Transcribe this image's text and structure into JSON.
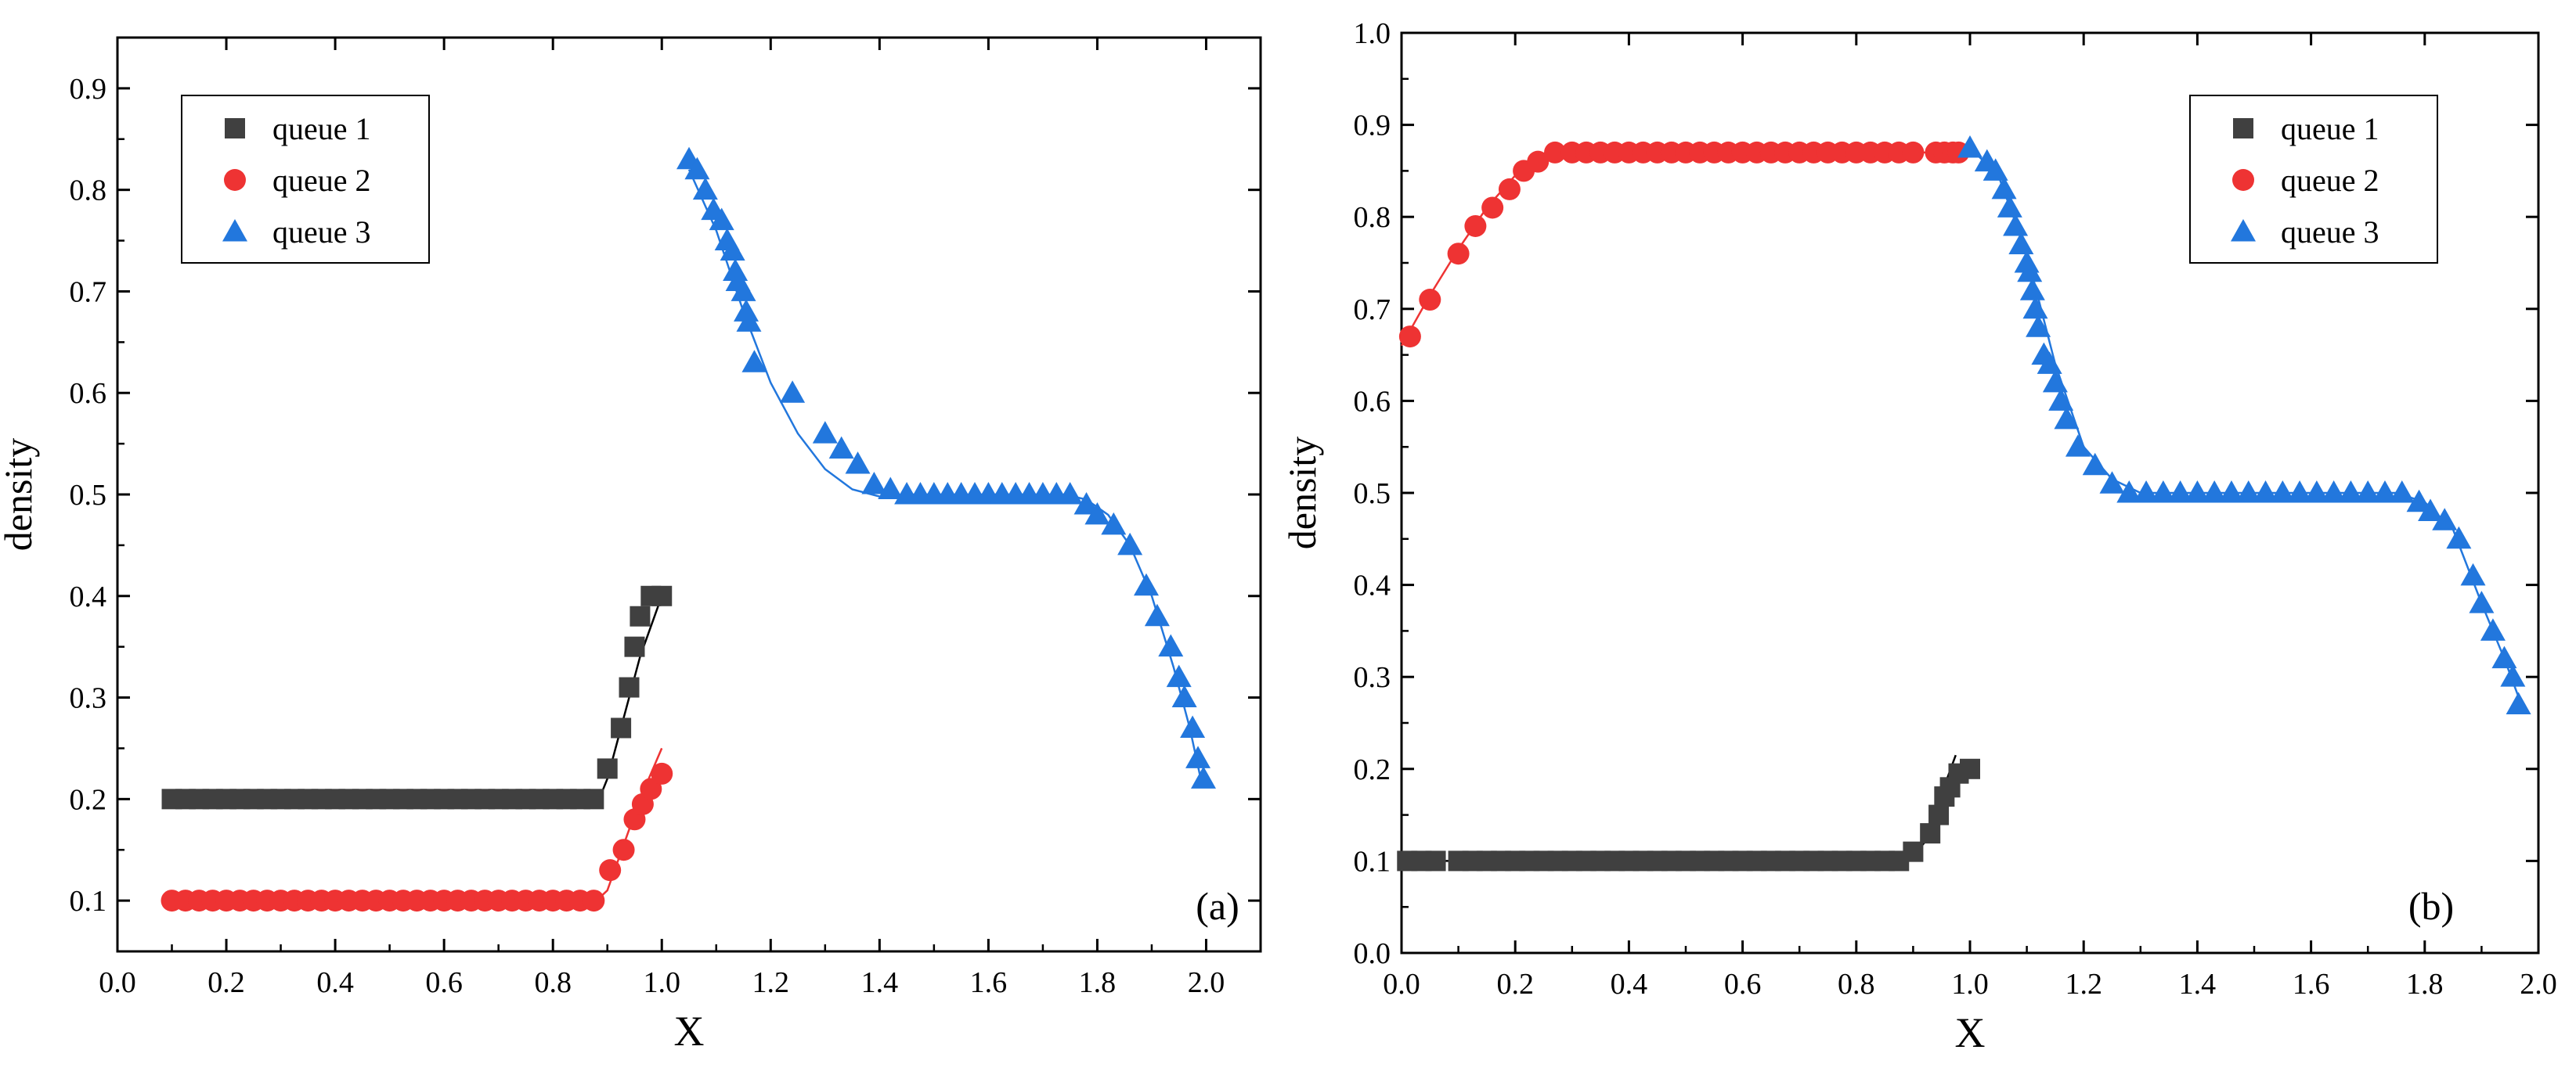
{
  "chart_data": [
    {
      "type": "scatter",
      "panel_label": "(a)",
      "xlabel": "X",
      "ylabel": "density",
      "xlim": [
        0.0,
        2.1
      ],
      "ylim": [
        0.05,
        0.95
      ],
      "xticks": [
        "0.0",
        "0.2",
        "0.4",
        "0.6",
        "0.8",
        "1.0",
        "1.2",
        "1.4",
        "1.6",
        "1.8",
        "2.0"
      ],
      "xtick_values": [
        0.0,
        0.2,
        0.4,
        0.6,
        0.8,
        1.0,
        1.2,
        1.4,
        1.6,
        1.8,
        2.0
      ],
      "yticks": [
        "0.1",
        "0.2",
        "0.3",
        "0.4",
        "0.5",
        "0.6",
        "0.7",
        "0.8",
        "0.9"
      ],
      "ytick_values": [
        0.1,
        0.2,
        0.3,
        0.4,
        0.5,
        0.6,
        0.7,
        0.8,
        0.9
      ],
      "legend_position": "top-left",
      "series": [
        {
          "name": "queue 1",
          "marker": "square",
          "color": "#404040",
          "x": [
            0.1,
            0.125,
            0.15,
            0.175,
            0.2,
            0.225,
            0.25,
            0.275,
            0.3,
            0.325,
            0.35,
            0.375,
            0.4,
            0.425,
            0.45,
            0.475,
            0.5,
            0.525,
            0.55,
            0.575,
            0.6,
            0.625,
            0.65,
            0.675,
            0.7,
            0.725,
            0.75,
            0.775,
            0.8,
            0.825,
            0.85,
            0.875,
            0.9,
            0.925,
            0.94,
            0.95,
            0.96,
            0.98,
            1.0
          ],
          "y": [
            0.2,
            0.2,
            0.2,
            0.2,
            0.2,
            0.2,
            0.2,
            0.2,
            0.2,
            0.2,
            0.2,
            0.2,
            0.2,
            0.2,
            0.2,
            0.2,
            0.2,
            0.2,
            0.2,
            0.2,
            0.2,
            0.2,
            0.2,
            0.2,
            0.2,
            0.2,
            0.2,
            0.2,
            0.2,
            0.2,
            0.2,
            0.2,
            0.23,
            0.27,
            0.31,
            0.35,
            0.38,
            0.4,
            0.4
          ],
          "line_x": [
            0.1,
            0.885,
            0.9,
            0.92,
            0.94,
            0.96,
            0.98,
            1.0
          ],
          "line_y": [
            0.2,
            0.2,
            0.22,
            0.26,
            0.3,
            0.34,
            0.37,
            0.4
          ]
        },
        {
          "name": "queue 2",
          "marker": "circle",
          "color": "#ee3333",
          "x": [
            0.1,
            0.125,
            0.15,
            0.175,
            0.2,
            0.225,
            0.25,
            0.275,
            0.3,
            0.325,
            0.35,
            0.375,
            0.4,
            0.425,
            0.45,
            0.475,
            0.5,
            0.525,
            0.55,
            0.575,
            0.6,
            0.625,
            0.65,
            0.675,
            0.7,
            0.725,
            0.75,
            0.775,
            0.8,
            0.825,
            0.85,
            0.875,
            0.905,
            0.93,
            0.95,
            0.965,
            0.98,
            1.0
          ],
          "y": [
            0.1,
            0.1,
            0.1,
            0.1,
            0.1,
            0.1,
            0.1,
            0.1,
            0.1,
            0.1,
            0.1,
            0.1,
            0.1,
            0.1,
            0.1,
            0.1,
            0.1,
            0.1,
            0.1,
            0.1,
            0.1,
            0.1,
            0.1,
            0.1,
            0.1,
            0.1,
            0.1,
            0.1,
            0.1,
            0.1,
            0.1,
            0.1,
            0.13,
            0.15,
            0.18,
            0.195,
            0.21,
            0.225
          ],
          "line_x": [
            0.1,
            0.88,
            0.9,
            0.92,
            0.94,
            0.96,
            0.98,
            1.0
          ],
          "line_y": [
            0.1,
            0.1,
            0.11,
            0.14,
            0.17,
            0.2,
            0.225,
            0.25
          ]
        },
        {
          "name": "queue 3",
          "marker": "triangle",
          "color": "#2277dd",
          "x": [
            1.05,
            1.065,
            1.08,
            1.095,
            1.11,
            1.12,
            1.13,
            1.135,
            1.14,
            1.15,
            1.155,
            1.16,
            1.17,
            1.24,
            1.3,
            1.33,
            1.36,
            1.39,
            1.42,
            1.45,
            1.475,
            1.5,
            1.525,
            1.55,
            1.575,
            1.6,
            1.625,
            1.65,
            1.675,
            1.7,
            1.725,
            1.75,
            1.78,
            1.8,
            1.83,
            1.86,
            1.89,
            1.91,
            1.935,
            1.95,
            1.96,
            1.975,
            1.985,
            1.995
          ],
          "y": [
            0.83,
            0.82,
            0.8,
            0.78,
            0.77,
            0.75,
            0.74,
            0.72,
            0.71,
            0.7,
            0.68,
            0.67,
            0.63,
            0.6,
            0.56,
            0.545,
            0.53,
            0.51,
            0.505,
            0.5,
            0.5,
            0.5,
            0.5,
            0.5,
            0.5,
            0.5,
            0.5,
            0.5,
            0.5,
            0.5,
            0.5,
            0.5,
            0.49,
            0.48,
            0.47,
            0.45,
            0.41,
            0.38,
            0.35,
            0.32,
            0.3,
            0.27,
            0.24,
            0.22
          ],
          "line_x": [
            1.05,
            1.1,
            1.15,
            1.2,
            1.25,
            1.3,
            1.35,
            1.4,
            1.45,
            1.6,
            1.74,
            1.78,
            1.82,
            1.86,
            1.9,
            1.94,
            1.97,
            1.99
          ],
          "line_y": [
            0.82,
            0.76,
            0.68,
            0.61,
            0.56,
            0.525,
            0.505,
            0.498,
            0.5,
            0.5,
            0.5,
            0.495,
            0.48,
            0.45,
            0.4,
            0.33,
            0.27,
            0.22
          ]
        }
      ]
    },
    {
      "type": "scatter",
      "panel_label": "(b)",
      "xlabel": "X",
      "ylabel": "density",
      "xlim": [
        0.0,
        2.0
      ],
      "ylim": [
        0.0,
        1.0
      ],
      "xticks": [
        "0.0",
        "0.2",
        "0.4",
        "0.6",
        "0.8",
        "1.0",
        "1.2",
        "1.4",
        "1.6",
        "1.8",
        "2.0"
      ],
      "xtick_values": [
        0.0,
        0.2,
        0.4,
        0.6,
        0.8,
        1.0,
        1.2,
        1.4,
        1.6,
        1.8,
        2.0
      ],
      "yticks": [
        "0.0",
        "0.1",
        "0.2",
        "0.3",
        "0.4",
        "0.5",
        "0.6",
        "0.7",
        "0.8",
        "0.9",
        "1.0"
      ],
      "ytick_values": [
        0.0,
        0.1,
        0.2,
        0.3,
        0.4,
        0.5,
        0.6,
        0.7,
        0.8,
        0.9,
        1.0
      ],
      "legend_position": "top-right",
      "series": [
        {
          "name": "queue 1",
          "marker": "square",
          "color": "#404040",
          "x": [
            0.01,
            0.035,
            0.06,
            0.1,
            0.125,
            0.15,
            0.175,
            0.2,
            0.225,
            0.25,
            0.275,
            0.3,
            0.325,
            0.35,
            0.375,
            0.4,
            0.425,
            0.45,
            0.475,
            0.5,
            0.525,
            0.55,
            0.575,
            0.6,
            0.625,
            0.65,
            0.675,
            0.7,
            0.725,
            0.75,
            0.775,
            0.8,
            0.825,
            0.85,
            0.875,
            0.9,
            0.93,
            0.945,
            0.955,
            0.965,
            0.98,
            1.0
          ],
          "y": [
            0.1,
            0.1,
            0.1,
            0.1,
            0.1,
            0.1,
            0.1,
            0.1,
            0.1,
            0.1,
            0.1,
            0.1,
            0.1,
            0.1,
            0.1,
            0.1,
            0.1,
            0.1,
            0.1,
            0.1,
            0.1,
            0.1,
            0.1,
            0.1,
            0.1,
            0.1,
            0.1,
            0.1,
            0.1,
            0.1,
            0.1,
            0.1,
            0.1,
            0.1,
            0.1,
            0.11,
            0.13,
            0.15,
            0.17,
            0.18,
            0.195,
            0.2
          ],
          "line_x": [
            0.01,
            0.88,
            0.9,
            0.92,
            0.94,
            0.96,
            0.975
          ],
          "line_y": [
            0.1,
            0.1,
            0.105,
            0.12,
            0.15,
            0.19,
            0.215
          ]
        },
        {
          "name": "queue 2",
          "marker": "circle",
          "color": "#ee3333",
          "x": [
            0.015,
            0.05,
            0.1,
            0.13,
            0.16,
            0.19,
            0.215,
            0.24,
            0.27,
            0.3,
            0.325,
            0.35,
            0.375,
            0.4,
            0.425,
            0.45,
            0.475,
            0.5,
            0.525,
            0.55,
            0.575,
            0.6,
            0.625,
            0.65,
            0.675,
            0.7,
            0.725,
            0.75,
            0.775,
            0.8,
            0.825,
            0.85,
            0.875,
            0.9,
            0.94,
            0.955,
            0.97,
            0.98
          ],
          "y": [
            0.67,
            0.71,
            0.76,
            0.79,
            0.81,
            0.83,
            0.85,
            0.86,
            0.87,
            0.87,
            0.87,
            0.87,
            0.87,
            0.87,
            0.87,
            0.87,
            0.87,
            0.87,
            0.87,
            0.87,
            0.87,
            0.87,
            0.87,
            0.87,
            0.87,
            0.87,
            0.87,
            0.87,
            0.87,
            0.87,
            0.87,
            0.87,
            0.87,
            0.87,
            0.87,
            0.87,
            0.87,
            0.87
          ],
          "line_x": [
            0.0,
            0.05,
            0.1,
            0.15,
            0.2,
            0.25,
            0.28,
            0.5,
            0.99
          ],
          "line_y": [
            0.66,
            0.715,
            0.765,
            0.81,
            0.845,
            0.866,
            0.87,
            0.87,
            0.87
          ]
        },
        {
          "name": "queue 3",
          "marker": "triangle",
          "color": "#2277dd",
          "x": [
            1.0,
            1.03,
            1.045,
            1.06,
            1.07,
            1.08,
            1.09,
            1.1,
            1.105,
            1.11,
            1.115,
            1.12,
            1.13,
            1.14,
            1.15,
            1.16,
            1.17,
            1.19,
            1.22,
            1.25,
            1.28,
            1.31,
            1.34,
            1.37,
            1.4,
            1.43,
            1.46,
            1.49,
            1.52,
            1.55,
            1.58,
            1.61,
            1.64,
            1.67,
            1.7,
            1.73,
            1.76,
            1.79,
            1.81,
            1.835,
            1.86,
            1.885,
            1.9,
            1.92,
            1.94,
            1.955,
            1.965
          ],
          "y": [
            0.875,
            0.86,
            0.85,
            0.83,
            0.81,
            0.79,
            0.77,
            0.75,
            0.74,
            0.72,
            0.7,
            0.68,
            0.65,
            0.64,
            0.62,
            0.6,
            0.58,
            0.55,
            0.53,
            0.51,
            0.5,
            0.5,
            0.5,
            0.5,
            0.5,
            0.5,
            0.5,
            0.5,
            0.5,
            0.5,
            0.5,
            0.5,
            0.5,
            0.5,
            0.5,
            0.5,
            0.5,
            0.49,
            0.48,
            0.47,
            0.45,
            0.41,
            0.38,
            0.35,
            0.32,
            0.3,
            0.27
          ],
          "line_x": [
            1.0,
            1.05,
            1.1,
            1.15,
            1.2,
            1.25,
            1.3,
            1.5,
            1.75,
            1.8,
            1.85,
            1.9,
            1.94,
            1.97
          ],
          "line_y": [
            0.875,
            0.845,
            0.76,
            0.64,
            0.55,
            0.515,
            0.5,
            0.5,
            0.5,
            0.49,
            0.46,
            0.38,
            0.32,
            0.27
          ]
        }
      ]
    }
  ]
}
